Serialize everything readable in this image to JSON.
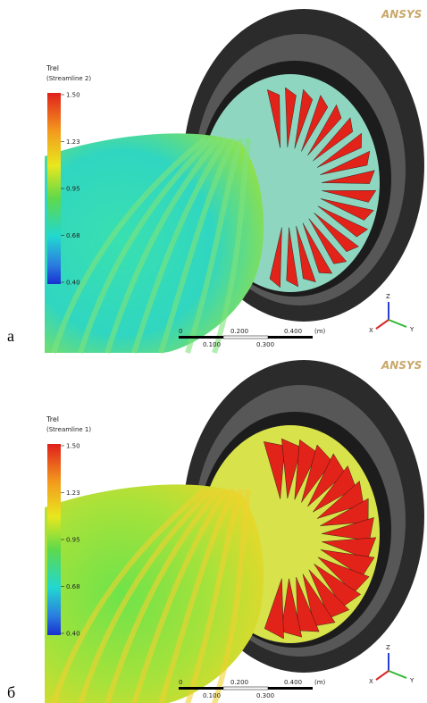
{
  "panels": [
    {
      "label": "а",
      "logo": "ANSYS",
      "legend": {
        "title": "Trel",
        "subtitle": "(Streamline 2)",
        "ticks": [
          "1.50",
          "1.23",
          "0.95",
          "0.68",
          "0.40"
        ]
      },
      "scale": {
        "top": [
          "0",
          "0.200",
          "0.400",
          "(m)"
        ],
        "bottom": [
          "0.100",
          "0.300"
        ]
      },
      "axes": [
        "Z",
        "Y",
        "X"
      ]
    },
    {
      "label": "б",
      "logo": "ANSYS",
      "legend": {
        "title": "Trel",
        "subtitle": "(Streamline 1)",
        "ticks": [
          "1.50",
          "1.23",
          "0.95",
          "0.68",
          "0.40"
        ]
      },
      "scale": {
        "top": [
          "0",
          "0.200",
          "0.400",
          "(m)"
        ],
        "bottom": [
          "0.100",
          "0.300"
        ]
      },
      "axes": [
        "Z",
        "Y",
        "X"
      ]
    }
  ]
}
